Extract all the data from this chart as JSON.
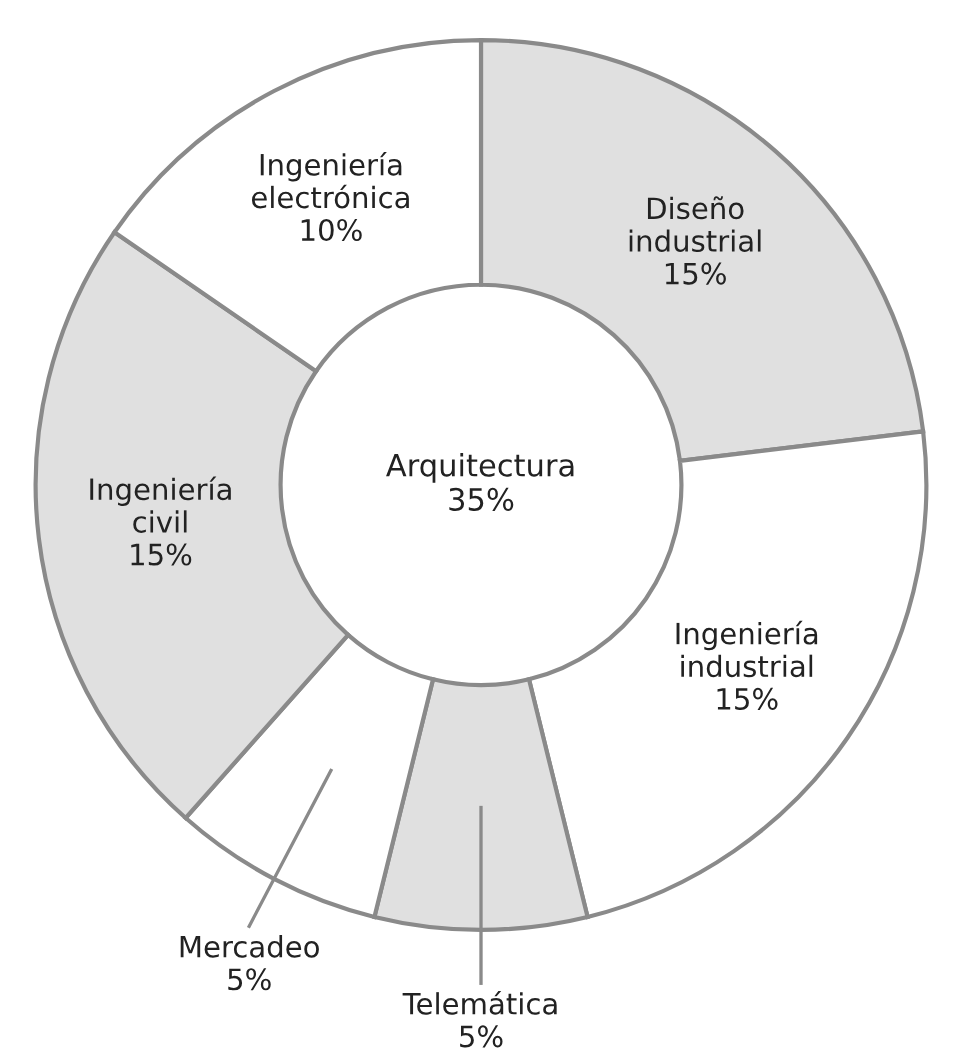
{
  "chart_data": {
    "type": "donut",
    "categories": [
      "Diseño\nindustrial",
      "Ingeniería\nindustrial",
      "Telemática",
      "Mercadeo",
      "Ingeniería\ncivil",
      "Ingeniería\nelectrónica"
    ],
    "values": [
      15,
      15,
      5,
      5,
      15,
      10
    ],
    "colors": [
      "#e0e0e0",
      "#ffffff",
      "#e0e0e0",
      "#ffffff",
      "#e0e0e0",
      "#ffffff"
    ],
    "value_labels": [
      "15%",
      "15%",
      "5%",
      "5%",
      "15%",
      "10%"
    ],
    "annotations": [
      "Arquitectura\n35%"
    ]
  }
}
